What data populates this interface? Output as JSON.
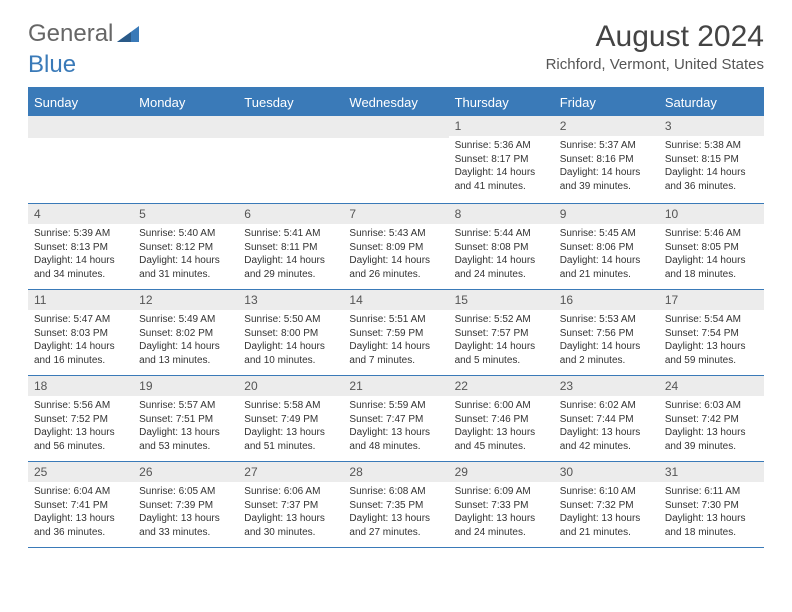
{
  "logo": {
    "text1": "General",
    "text2": "Blue"
  },
  "title": "August 2024",
  "location": "Richford, Vermont, United States",
  "colors": {
    "brand": "#3a7ab8",
    "header_text": "#ffffff",
    "daynum_bg": "#ececec",
    "body_text": "#333333",
    "title_text": "#444444"
  },
  "day_headers": [
    "Sunday",
    "Monday",
    "Tuesday",
    "Wednesday",
    "Thursday",
    "Friday",
    "Saturday"
  ],
  "weeks": [
    [
      null,
      null,
      null,
      null,
      {
        "n": "1",
        "sr": "5:36 AM",
        "ss": "8:17 PM",
        "dl": "14 hours and 41 minutes."
      },
      {
        "n": "2",
        "sr": "5:37 AM",
        "ss": "8:16 PM",
        "dl": "14 hours and 39 minutes."
      },
      {
        "n": "3",
        "sr": "5:38 AM",
        "ss": "8:15 PM",
        "dl": "14 hours and 36 minutes."
      }
    ],
    [
      {
        "n": "4",
        "sr": "5:39 AM",
        "ss": "8:13 PM",
        "dl": "14 hours and 34 minutes."
      },
      {
        "n": "5",
        "sr": "5:40 AM",
        "ss": "8:12 PM",
        "dl": "14 hours and 31 minutes."
      },
      {
        "n": "6",
        "sr": "5:41 AM",
        "ss": "8:11 PM",
        "dl": "14 hours and 29 minutes."
      },
      {
        "n": "7",
        "sr": "5:43 AM",
        "ss": "8:09 PM",
        "dl": "14 hours and 26 minutes."
      },
      {
        "n": "8",
        "sr": "5:44 AM",
        "ss": "8:08 PM",
        "dl": "14 hours and 24 minutes."
      },
      {
        "n": "9",
        "sr": "5:45 AM",
        "ss": "8:06 PM",
        "dl": "14 hours and 21 minutes."
      },
      {
        "n": "10",
        "sr": "5:46 AM",
        "ss": "8:05 PM",
        "dl": "14 hours and 18 minutes."
      }
    ],
    [
      {
        "n": "11",
        "sr": "5:47 AM",
        "ss": "8:03 PM",
        "dl": "14 hours and 16 minutes."
      },
      {
        "n": "12",
        "sr": "5:49 AM",
        "ss": "8:02 PM",
        "dl": "14 hours and 13 minutes."
      },
      {
        "n": "13",
        "sr": "5:50 AM",
        "ss": "8:00 PM",
        "dl": "14 hours and 10 minutes."
      },
      {
        "n": "14",
        "sr": "5:51 AM",
        "ss": "7:59 PM",
        "dl": "14 hours and 7 minutes."
      },
      {
        "n": "15",
        "sr": "5:52 AM",
        "ss": "7:57 PM",
        "dl": "14 hours and 5 minutes."
      },
      {
        "n": "16",
        "sr": "5:53 AM",
        "ss": "7:56 PM",
        "dl": "14 hours and 2 minutes."
      },
      {
        "n": "17",
        "sr": "5:54 AM",
        "ss": "7:54 PM",
        "dl": "13 hours and 59 minutes."
      }
    ],
    [
      {
        "n": "18",
        "sr": "5:56 AM",
        "ss": "7:52 PM",
        "dl": "13 hours and 56 minutes."
      },
      {
        "n": "19",
        "sr": "5:57 AM",
        "ss": "7:51 PM",
        "dl": "13 hours and 53 minutes."
      },
      {
        "n": "20",
        "sr": "5:58 AM",
        "ss": "7:49 PM",
        "dl": "13 hours and 51 minutes."
      },
      {
        "n": "21",
        "sr": "5:59 AM",
        "ss": "7:47 PM",
        "dl": "13 hours and 48 minutes."
      },
      {
        "n": "22",
        "sr": "6:00 AM",
        "ss": "7:46 PM",
        "dl": "13 hours and 45 minutes."
      },
      {
        "n": "23",
        "sr": "6:02 AM",
        "ss": "7:44 PM",
        "dl": "13 hours and 42 minutes."
      },
      {
        "n": "24",
        "sr": "6:03 AM",
        "ss": "7:42 PM",
        "dl": "13 hours and 39 minutes."
      }
    ],
    [
      {
        "n": "25",
        "sr": "6:04 AM",
        "ss": "7:41 PM",
        "dl": "13 hours and 36 minutes."
      },
      {
        "n": "26",
        "sr": "6:05 AM",
        "ss": "7:39 PM",
        "dl": "13 hours and 33 minutes."
      },
      {
        "n": "27",
        "sr": "6:06 AM",
        "ss": "7:37 PM",
        "dl": "13 hours and 30 minutes."
      },
      {
        "n": "28",
        "sr": "6:08 AM",
        "ss": "7:35 PM",
        "dl": "13 hours and 27 minutes."
      },
      {
        "n": "29",
        "sr": "6:09 AM",
        "ss": "7:33 PM",
        "dl": "13 hours and 24 minutes."
      },
      {
        "n": "30",
        "sr": "6:10 AM",
        "ss": "7:32 PM",
        "dl": "13 hours and 21 minutes."
      },
      {
        "n": "31",
        "sr": "6:11 AM",
        "ss": "7:30 PM",
        "dl": "13 hours and 18 minutes."
      }
    ]
  ],
  "labels": {
    "sunrise": "Sunrise:",
    "sunset": "Sunset:",
    "daylight": "Daylight:"
  }
}
